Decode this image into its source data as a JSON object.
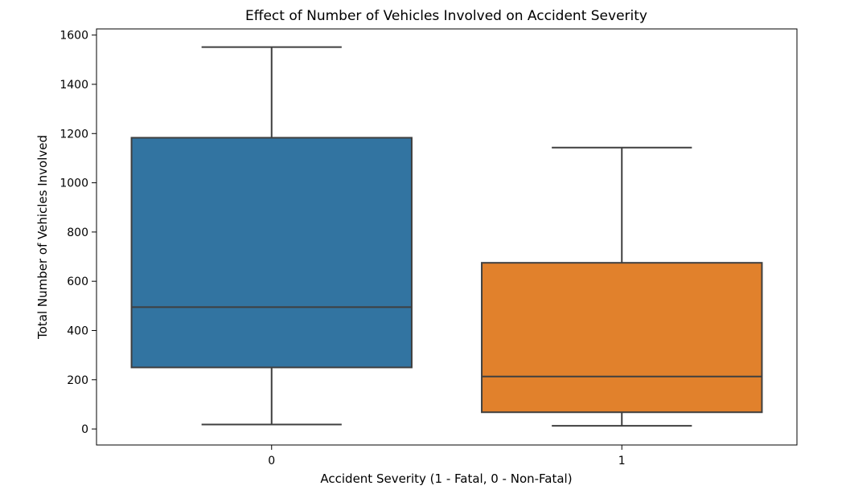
{
  "chart_data": {
    "type": "box",
    "title": "Effect of Number of Vehicles Involved on Accident Severity",
    "xlabel": "Accident Severity (1 - Fatal, 0 - Non-Fatal)",
    "ylabel": "Total Number of Vehicles Involved",
    "categories": [
      "0",
      "1"
    ],
    "ylim": [
      -65,
      1625
    ],
    "yticks": [
      0,
      200,
      400,
      600,
      800,
      1000,
      1200,
      1400,
      1600
    ],
    "boxes": [
      {
        "category": "0",
        "whisker_low": 18,
        "q1": 250,
        "median": 495,
        "q3": 1183,
        "whisker_high": 1551,
        "color": "#3274a1"
      },
      {
        "category": "1",
        "whisker_low": 13,
        "q1": 68,
        "median": 213,
        "q3": 675,
        "whisker_high": 1143,
        "color": "#e1812c"
      }
    ],
    "grid": false,
    "legend": "none"
  }
}
